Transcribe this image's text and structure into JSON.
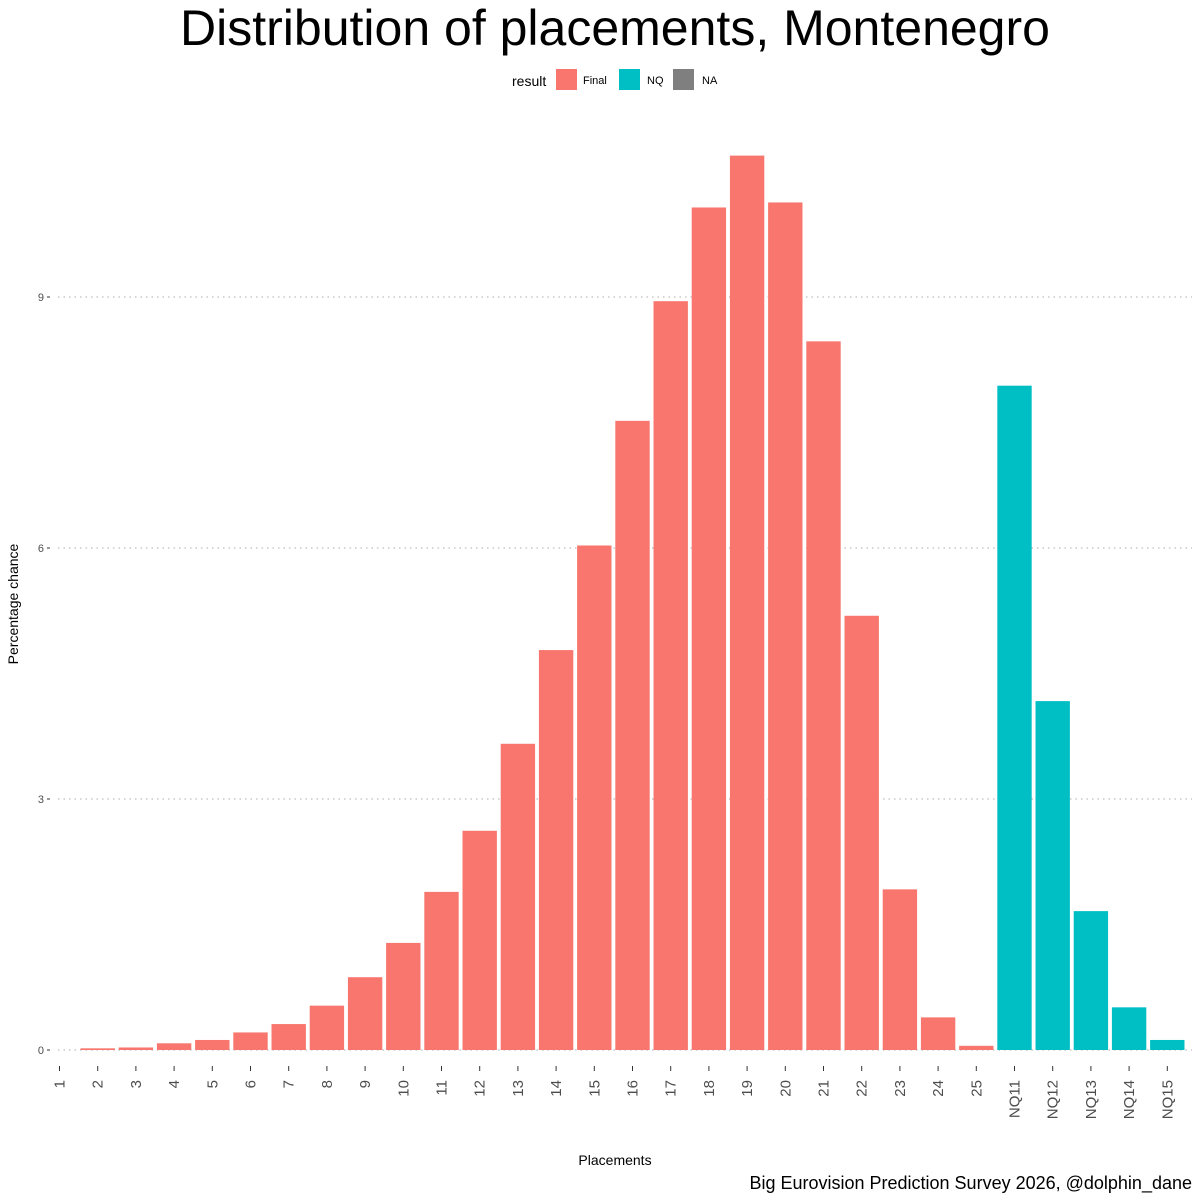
{
  "chart_data": {
    "type": "bar",
    "title": "Distribution of placements, Montenegro",
    "xlabel": "Placements",
    "ylabel": "Percentage chance",
    "caption": "Big Eurovision Prediction Survey 2026, @dolphin_dane",
    "legend": {
      "title": "result",
      "position": "top",
      "entries": [
        {
          "label": "Final",
          "color": "#F8766D"
        },
        {
          "label": "NQ",
          "color": "#00BFC4"
        },
        {
          "label": "NA",
          "color": "#7F7F7F"
        }
      ]
    },
    "ylim": [
      0,
      11.2
    ],
    "yticks": [
      "0",
      "3",
      "6",
      "9"
    ],
    "grid": "horizontal-dotted",
    "categories": [
      "1",
      "2",
      "3",
      "4",
      "5",
      "6",
      "7",
      "8",
      "9",
      "10",
      "11",
      "12",
      "13",
      "14",
      "15",
      "16",
      "17",
      "18",
      "19",
      "20",
      "21",
      "22",
      "23",
      "24",
      "25",
      "NQ11",
      "NQ12",
      "NQ13",
      "NQ14",
      "NQ15"
    ],
    "values": [
      0,
      0.02,
      0.03,
      0.08,
      0.12,
      0.21,
      0.31,
      0.53,
      0.87,
      1.28,
      1.89,
      2.62,
      3.66,
      4.78,
      6.03,
      7.52,
      8.95,
      10.07,
      10.69,
      10.13,
      8.47,
      5.19,
      1.92,
      0.39,
      0.05,
      7.94,
      4.17,
      1.66,
      0.51,
      0.12
    ],
    "groups": [
      "Final",
      "Final",
      "Final",
      "Final",
      "Final",
      "Final",
      "Final",
      "Final",
      "Final",
      "Final",
      "Final",
      "Final",
      "Final",
      "Final",
      "Final",
      "Final",
      "Final",
      "Final",
      "Final",
      "Final",
      "Final",
      "Final",
      "Final",
      "Final",
      "Final",
      "NQ",
      "NQ",
      "NQ",
      "NQ",
      "NQ"
    ]
  }
}
